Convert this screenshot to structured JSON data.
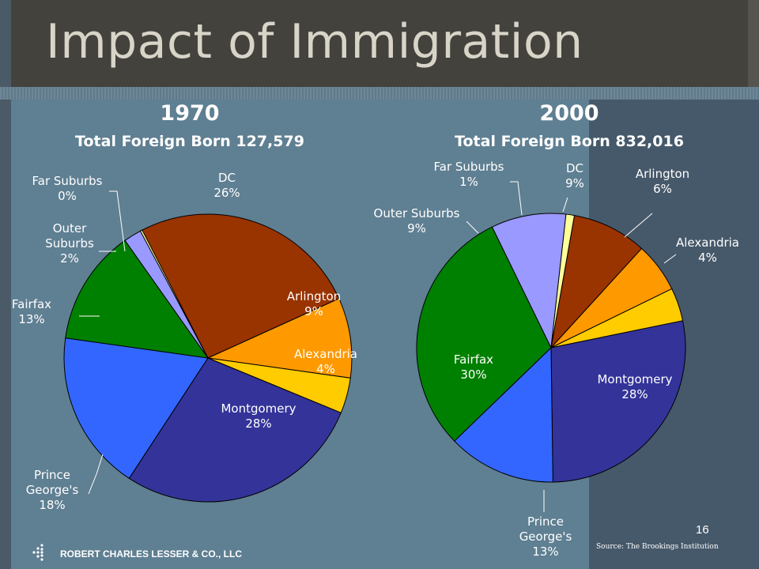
{
  "slide": {
    "title": "Impact of Immigration",
    "company": "ROBERT CHARLES LESSER & CO., LLC",
    "page_number": "16",
    "source": "Source: The Brookings Institution"
  },
  "chart_data": [
    {
      "type": "pie",
      "title": "1970",
      "subtitle": "Total Foreign Born 127,579",
      "categories": [
        "DC",
        "Arlington",
        "Alexandria",
        "Montgomery",
        "Prince George's",
        "Fairfax",
        "Outer Suburbs",
        "Far Suburbs"
      ],
      "values": [
        26,
        9,
        4,
        28,
        18,
        13,
        2,
        0
      ],
      "value_labels": [
        "26%",
        "9%",
        "4%",
        "28%",
        "18%",
        "13%",
        "2%",
        "0%"
      ],
      "label_lines": [
        [
          "DC"
        ],
        [
          "Arlington"
        ],
        [
          "Alexandria"
        ],
        [
          "Montgomery"
        ],
        [
          "Prince",
          "George's"
        ],
        [
          "Fairfax"
        ],
        [
          "Outer",
          "Suburbs"
        ],
        [
          "Far Suburbs"
        ]
      ],
      "colors": [
        "#993300",
        "#ff9900",
        "#ffcc00",
        "#333399",
        "#3366ff",
        "#008000",
        "#9999ff",
        "#ffff99"
      ]
    },
    {
      "type": "pie",
      "title": "2000",
      "subtitle": "Total Foreign Born 832,016",
      "categories": [
        "DC",
        "Arlington",
        "Alexandria",
        "Montgomery",
        "Prince George's",
        "Fairfax",
        "Outer Suburbs",
        "Far Suburbs"
      ],
      "values": [
        9,
        6,
        4,
        28,
        13,
        30,
        9,
        1
      ],
      "value_labels": [
        "9%",
        "6%",
        "4%",
        "28%",
        "13%",
        "30%",
        "9%",
        "1%"
      ],
      "label_lines": [
        [
          "DC"
        ],
        [
          "Arlington"
        ],
        [
          "Alexandria"
        ],
        [
          "Montgomery"
        ],
        [
          "Prince",
          "George's"
        ],
        [
          "Fairfax"
        ],
        [
          "Outer Suburbs"
        ],
        [
          "Far Suburbs"
        ]
      ],
      "colors": [
        "#993300",
        "#ff9900",
        "#ffcc00",
        "#333399",
        "#3366ff",
        "#008000",
        "#9999ff",
        "#ffff99"
      ]
    }
  ]
}
